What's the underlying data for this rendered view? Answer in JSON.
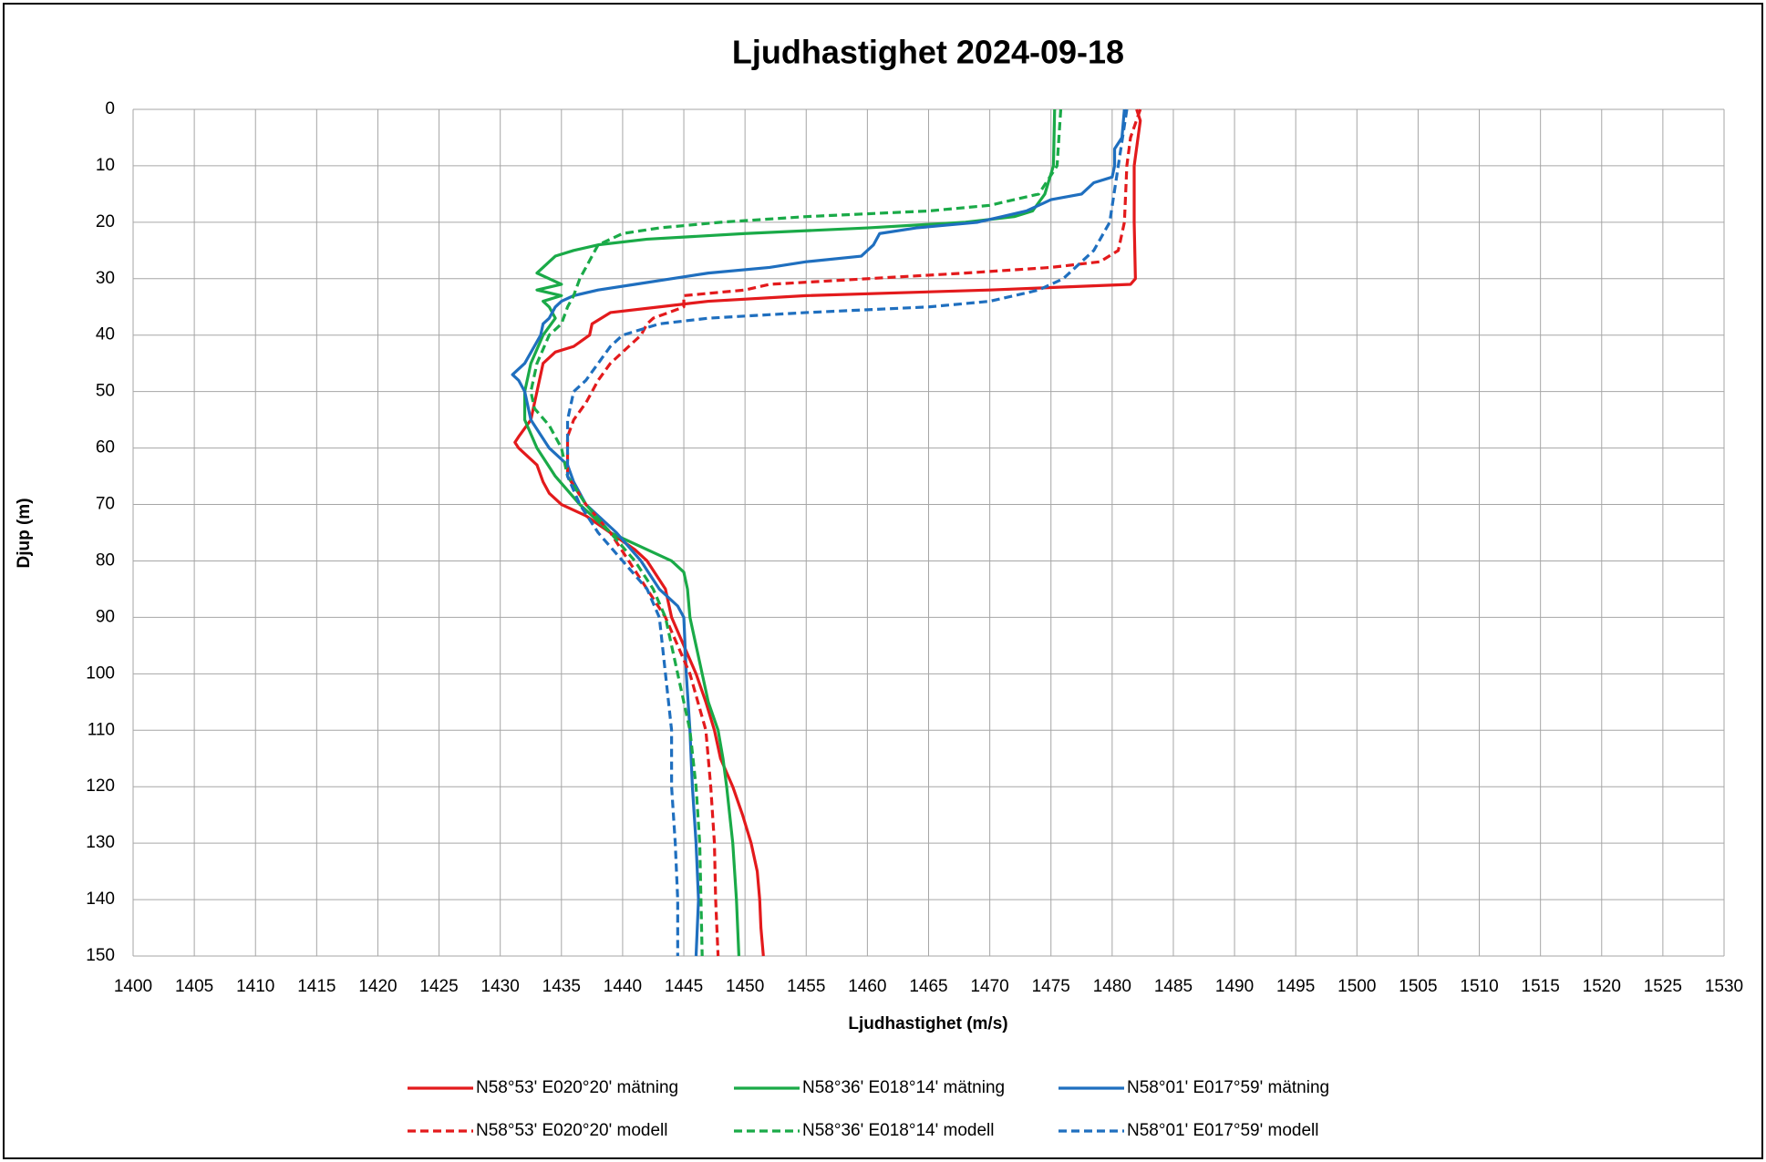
{
  "chart_data": {
    "type": "line",
    "title": "Ljudhastighet 2024-09-18",
    "x_label": "Ljudhastighet (m/s)",
    "y_label": "Djup (m)",
    "xlim": [
      1400,
      1530
    ],
    "xticks": [
      1400,
      1405,
      1410,
      1415,
      1420,
      1425,
      1430,
      1435,
      1440,
      1445,
      1450,
      1455,
      1460,
      1465,
      1470,
      1475,
      1480,
      1485,
      1490,
      1495,
      1500,
      1505,
      1510,
      1515,
      1520,
      1525,
      1530
    ],
    "ylim": [
      0,
      150
    ],
    "y_inverted": true,
    "yticks": [
      0,
      10,
      20,
      30,
      40,
      50,
      60,
      70,
      80,
      90,
      100,
      110,
      120,
      130,
      140,
      150
    ],
    "grid": true,
    "legend": "bottom",
    "series": [
      {
        "name": "N58°53' E020°20' mätning",
        "color": "#e31a1c",
        "dashed": false,
        "y": [
          0,
          2,
          10,
          20,
          30,
          31,
          32,
          33,
          34,
          35,
          36,
          38,
          40,
          42,
          43,
          45,
          50,
          55,
          58,
          59,
          60,
          61,
          63,
          66,
          68,
          70,
          72,
          75,
          78,
          80,
          85,
          90,
          95,
          100,
          105,
          110,
          115,
          120,
          125,
          130,
          135,
          140,
          145,
          150
        ],
        "x": [
          1482,
          1482.3,
          1481.8,
          1481.8,
          1481.9,
          1481.5,
          1470,
          1455,
          1447,
          1443,
          1439,
          1437.5,
          1437.3,
          1436,
          1434.5,
          1433.5,
          1433,
          1432.5,
          1431.5,
          1431.2,
          1431.5,
          1432,
          1433,
          1433.5,
          1434,
          1435,
          1437,
          1439,
          1441,
          1442,
          1443.5,
          1444,
          1445,
          1446,
          1446.8,
          1447.5,
          1448,
          1449,
          1449.8,
          1450.5,
          1451,
          1451.2,
          1451.3,
          1451.5
        ]
      },
      {
        "name": "N58°36' E018°14' mätning",
        "color": "#1aaa48",
        "dashed": false,
        "y": [
          0,
          10,
          15,
          18,
          19,
          20,
          21,
          22,
          23,
          24,
          25,
          26,
          27,
          28,
          29,
          30,
          31,
          32,
          33,
          34,
          35,
          37,
          40,
          45,
          50,
          55,
          60,
          65,
          70,
          75,
          78,
          80,
          82,
          85,
          90,
          95,
          100,
          105,
          110,
          115,
          120,
          130,
          140,
          150
        ],
        "x": [
          1475.3,
          1475.2,
          1474.5,
          1473.5,
          1472,
          1468,
          1460,
          1450,
          1442,
          1438,
          1436,
          1434.5,
          1434,
          1433.5,
          1433,
          1434,
          1435,
          1433,
          1435,
          1433.5,
          1434,
          1434.5,
          1433.5,
          1432.5,
          1432,
          1432,
          1433,
          1434.5,
          1436.5,
          1439,
          1442,
          1444,
          1445,
          1445.3,
          1445.5,
          1446,
          1446.5,
          1447,
          1447.8,
          1448.2,
          1448.5,
          1449,
          1449.3,
          1449.5
        ]
      },
      {
        "name": "N58°01' E017°59' mätning",
        "color": "#1f6fbf",
        "dashed": false,
        "y": [
          0,
          5,
          7,
          10,
          12,
          13,
          15,
          16,
          18,
          19,
          20,
          21,
          22,
          24,
          25,
          26,
          27,
          28,
          29,
          30,
          31,
          32,
          33,
          34,
          35,
          37,
          38,
          40,
          45,
          47,
          48,
          50,
          55,
          60,
          63,
          66,
          70,
          75,
          80,
          85,
          88,
          90,
          100,
          110,
          120,
          130,
          140,
          150
        ],
        "x": [
          1481,
          1480.8,
          1480.2,
          1480.2,
          1480,
          1478.5,
          1477.5,
          1475,
          1473,
          1471,
          1469,
          1464,
          1461,
          1460.5,
          1460,
          1459.5,
          1455,
          1452,
          1447,
          1444,
          1441,
          1438,
          1436,
          1435,
          1434.5,
          1434,
          1433.5,
          1433.3,
          1432,
          1431,
          1431.5,
          1432,
          1432.5,
          1434,
          1435.5,
          1436,
          1437,
          1439.5,
          1441.5,
          1443,
          1444.5,
          1445,
          1445.2,
          1445.5,
          1445.7,
          1446,
          1446.2,
          1446
        ]
      },
      {
        "name": "N58°53' E020°20' modell",
        "color": "#e31a1c",
        "dashed": true,
        "y": [
          0,
          5,
          10,
          20,
          25,
          27,
          28,
          29,
          30,
          31,
          32,
          33,
          35,
          37,
          38,
          40,
          42,
          45,
          48,
          50,
          52,
          55,
          58,
          60,
          65,
          70,
          75,
          80,
          85,
          90,
          95,
          100,
          110,
          120,
          130,
          140,
          150
        ],
        "x": [
          1482.3,
          1481.5,
          1481.2,
          1481,
          1480.5,
          1479,
          1475,
          1468,
          1460,
          1452,
          1450,
          1445,
          1445,
          1442.5,
          1442,
          1441.5,
          1440.5,
          1439,
          1438,
          1437.5,
          1437,
          1436,
          1435.5,
          1435.5,
          1435.5,
          1437,
          1439,
          1440.5,
          1442,
          1443.5,
          1444.5,
          1445.5,
          1446.8,
          1447.2,
          1447.5,
          1447.6,
          1447.8
        ]
      },
      {
        "name": "N58°36' E018°14' modell",
        "color": "#1aaa48",
        "dashed": true,
        "y": [
          0,
          10,
          15,
          17,
          18,
          19,
          20,
          21,
          22,
          24,
          26,
          28,
          30,
          33,
          35,
          38,
          40,
          45,
          50,
          53,
          56,
          60,
          65,
          70,
          75,
          80,
          85,
          90,
          95,
          100,
          110,
          120,
          130,
          140,
          150
        ],
        "x": [
          1475.8,
          1475.5,
          1474,
          1470,
          1465,
          1455,
          1448,
          1443,
          1440,
          1438,
          1437.5,
          1437,
          1436.5,
          1436,
          1435.5,
          1435,
          1434,
          1433,
          1432.5,
          1432.8,
          1434,
          1435,
          1435.5,
          1437,
          1439,
          1441,
          1442.5,
          1443.5,
          1444,
          1444.5,
          1445.5,
          1446,
          1446.3,
          1446.4,
          1446.5
        ]
      },
      {
        "name": "N58°01' E017°59' modell",
        "color": "#1f6fbf",
        "dashed": true,
        "y": [
          0,
          10,
          20,
          25,
          28,
          30,
          32,
          34,
          35,
          36,
          37,
          38,
          40,
          42,
          45,
          48,
          50,
          55,
          60,
          65,
          70,
          75,
          80,
          85,
          90,
          100,
          110,
          120,
          130,
          140,
          150
        ],
        "x": [
          1481.2,
          1480.5,
          1479.8,
          1478.5,
          1477,
          1476,
          1474,
          1470,
          1465,
          1455,
          1447,
          1443,
          1440,
          1439,
          1438,
          1437,
          1436,
          1435.5,
          1435.5,
          1435.5,
          1436.5,
          1438,
          1440,
          1442,
          1443,
          1443.5,
          1444,
          1444,
          1444.3,
          1444.5,
          1444.5
        ]
      }
    ]
  }
}
